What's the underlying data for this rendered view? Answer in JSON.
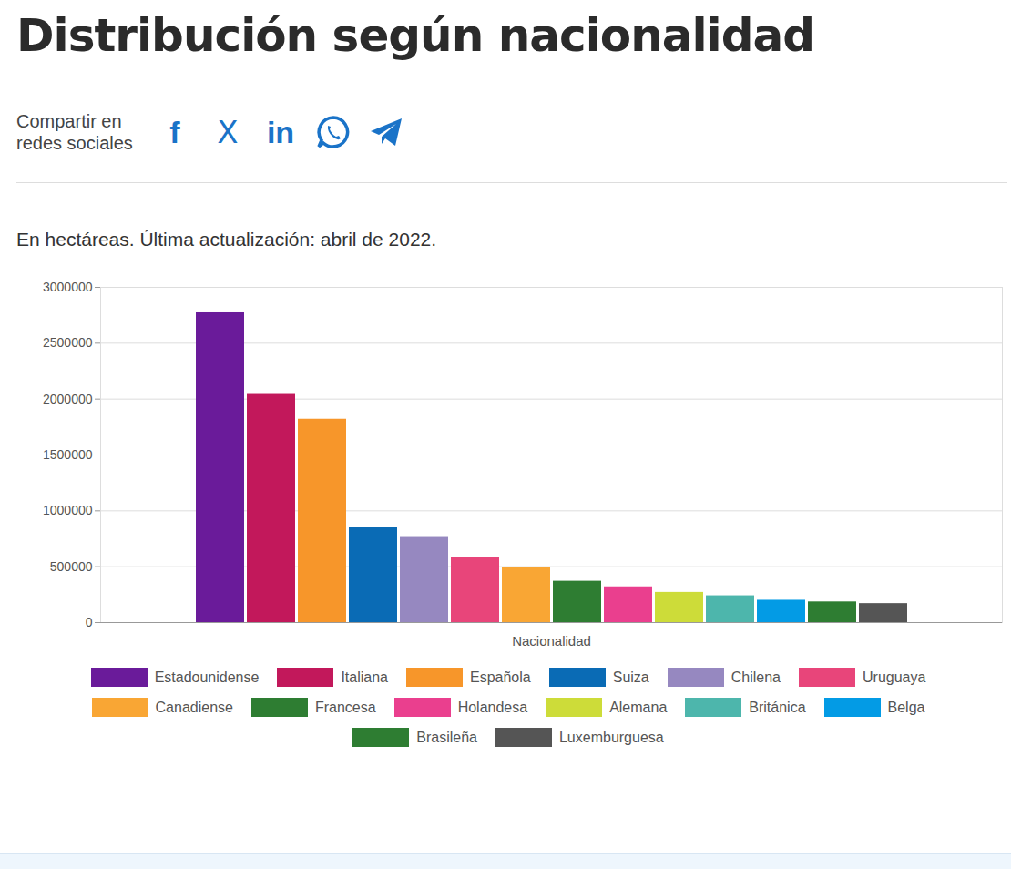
{
  "share": {
    "label": "Compartir en redes sociales",
    "icons": [
      "f",
      "X",
      "in"
    ]
  },
  "chart_data": {
    "type": "bar",
    "title": "Distribución según nacionalidad",
    "subtitle": "En hectáreas. Última actualización: abril de 2022.",
    "categories": [
      "Nacionalidad"
    ],
    "series": [
      {
        "name": "Estadounidense",
        "color": "#6a1b9a",
        "values": [
          2780000
        ]
      },
      {
        "name": "Italiana",
        "color": "#c2185b",
        "values": [
          2050000
        ]
      },
      {
        "name": "Española",
        "color": "#f7962a",
        "values": [
          1820000
        ]
      },
      {
        "name": "Suiza",
        "color": "#0a6bb5",
        "values": [
          850000
        ]
      },
      {
        "name": "Chilena",
        "color": "#9688c0",
        "values": [
          770000
        ]
      },
      {
        "name": "Uruguaya",
        "color": "#e8457a",
        "values": [
          580000
        ]
      },
      {
        "name": "Canadiense",
        "color": "#f9a634",
        "values": [
          490000
        ]
      },
      {
        "name": "Francesa",
        "color": "#2e7d32",
        "values": [
          370000
        ]
      },
      {
        "name": "Holandesa",
        "color": "#ea3f8e",
        "values": [
          320000
        ]
      },
      {
        "name": "Alemana",
        "color": "#cddc39",
        "values": [
          270000
        ]
      },
      {
        "name": "Británica",
        "color": "#4db6ac",
        "values": [
          240000
        ]
      },
      {
        "name": "Belga",
        "color": "#039be5",
        "values": [
          200000
        ]
      },
      {
        "name": "Brasileña",
        "color": "#2e7d32",
        "values": [
          185000
        ]
      },
      {
        "name": "Luxemburguesa",
        "color": "#555555",
        "values": [
          170000
        ]
      }
    ],
    "ylim": [
      0,
      3000000
    ],
    "yticks": [
      0,
      500000,
      1000000,
      1500000,
      2000000,
      2500000,
      3000000
    ],
    "grid": true,
    "legend": "bottom"
  }
}
